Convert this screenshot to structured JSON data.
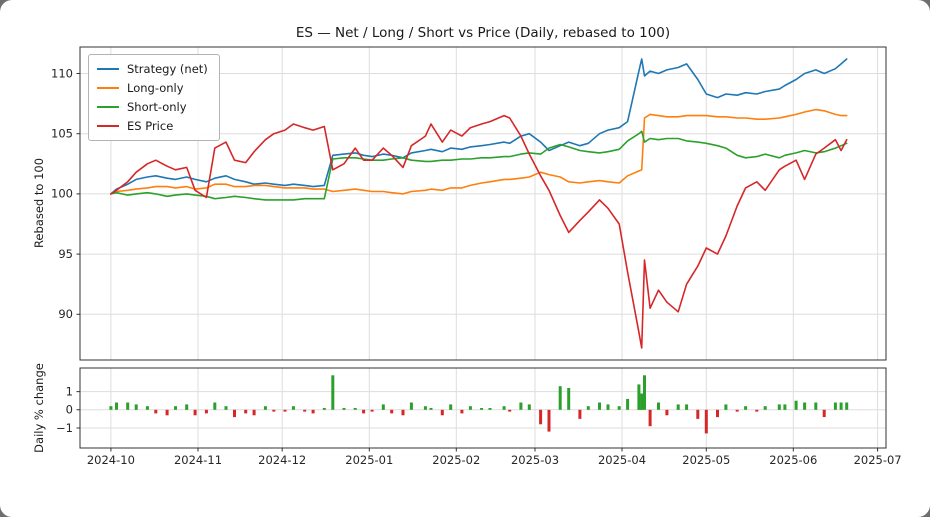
{
  "chart_data": {
    "type": "line+bar",
    "title": "ES — Net / Long / Short vs Price (Daily, rebased to 100)",
    "x_axis": {
      "range": [
        "2024-09-20",
        "2025-07-04"
      ],
      "tick_dates": [
        "2024-10-01",
        "2024-11-01",
        "2024-12-01",
        "2025-01-01",
        "2025-02-01",
        "2025-03-01",
        "2025-04-01",
        "2025-05-01",
        "2025-06-01",
        "2025-07-01"
      ],
      "tick_labels": [
        "2024-10",
        "2024-11",
        "2024-12",
        "2025-01",
        "2025-02",
        "2025-03",
        "2025-04",
        "2025-05",
        "2025-06",
        "2025-07"
      ]
    },
    "panels": {
      "top": {
        "ylabel": "Rebased to 100",
        "ylim": [
          86.2,
          112.2
        ],
        "yticks": [
          90,
          95,
          100,
          105,
          110
        ],
        "grid": true,
        "legend_position": "upper left",
        "dates": [
          "2024-10-01",
          "2024-10-03",
          "2024-10-07",
          "2024-10-10",
          "2024-10-14",
          "2024-10-17",
          "2024-10-21",
          "2024-10-24",
          "2024-10-28",
          "2024-10-31",
          "2024-11-04",
          "2024-11-07",
          "2024-11-11",
          "2024-11-14",
          "2024-11-18",
          "2024-11-21",
          "2024-11-25",
          "2024-11-28",
          "2024-12-02",
          "2024-12-05",
          "2024-12-09",
          "2024-12-12",
          "2024-12-16",
          "2024-12-19",
          "2024-12-23",
          "2024-12-27",
          "2024-12-30",
          "2025-01-02",
          "2025-01-06",
          "2025-01-09",
          "2025-01-13",
          "2025-01-16",
          "2025-01-21",
          "2025-01-23",
          "2025-01-27",
          "2025-01-30",
          "2025-02-03",
          "2025-02-06",
          "2025-02-10",
          "2025-02-13",
          "2025-02-18",
          "2025-02-20",
          "2025-02-24",
          "2025-02-27",
          "2025-03-03",
          "2025-03-06",
          "2025-03-10",
          "2025-03-13",
          "2025-03-17",
          "2025-03-20",
          "2025-03-24",
          "2025-03-27",
          "2025-03-31",
          "2025-04-03",
          "2025-04-07",
          "2025-04-08",
          "2025-04-09",
          "2025-04-11",
          "2025-04-14",
          "2025-04-17",
          "2025-04-21",
          "2025-04-24",
          "2025-04-28",
          "2025-05-01",
          "2025-05-05",
          "2025-05-08",
          "2025-05-12",
          "2025-05-15",
          "2025-05-19",
          "2025-05-22",
          "2025-05-27",
          "2025-05-29",
          "2025-06-02",
          "2025-06-05",
          "2025-06-09",
          "2025-06-12",
          "2025-06-16",
          "2025-06-18",
          "2025-06-20"
        ],
        "series": [
          {
            "name": "Strategy (net)",
            "color": "#1f77b4",
            "values": [
              100.0,
              100.4,
              100.8,
              101.2,
              101.4,
              101.5,
              101.3,
              101.2,
              101.4,
              101.2,
              101.0,
              101.3,
              101.5,
              101.2,
              101.0,
              100.8,
              100.9,
              100.8,
              100.7,
              100.8,
              100.7,
              100.6,
              100.7,
              103.2,
              103.3,
              103.4,
              103.2,
              103.1,
              103.3,
              103.2,
              103.0,
              103.4,
              103.6,
              103.7,
              103.5,
              103.8,
              103.7,
              103.9,
              104.0,
              104.1,
              104.3,
              104.2,
              104.8,
              105.0,
              104.3,
              103.6,
              104.0,
              104.3,
              104.0,
              104.2,
              105.0,
              105.3,
              105.5,
              106.0,
              110.2,
              111.2,
              109.8,
              110.2,
              110.0,
              110.3,
              110.5,
              110.8,
              109.5,
              108.3,
              108.0,
              108.3,
              108.2,
              108.4,
              108.3,
              108.5,
              108.7,
              109.0,
              109.5,
              110.0,
              110.3,
              110.0,
              110.4,
              110.8,
              111.2
            ]
          },
          {
            "name": "Long-only",
            "color": "#ff7f0e",
            "values": [
              100.0,
              100.2,
              100.3,
              100.4,
              100.5,
              100.6,
              100.6,
              100.5,
              100.6,
              100.4,
              100.5,
              100.8,
              100.8,
              100.6,
              100.6,
              100.7,
              100.7,
              100.6,
              100.5,
              100.5,
              100.5,
              100.4,
              100.4,
              100.2,
              100.3,
              100.4,
              100.3,
              100.2,
              100.2,
              100.1,
              100.0,
              100.2,
              100.3,
              100.4,
              100.3,
              100.5,
              100.5,
              100.7,
              100.9,
              101.0,
              101.2,
              101.2,
              101.3,
              101.4,
              101.8,
              101.6,
              101.4,
              101.0,
              100.9,
              101.0,
              101.1,
              101.0,
              100.9,
              101.5,
              101.9,
              102.0,
              106.3,
              106.6,
              106.5,
              106.4,
              106.4,
              106.5,
              106.5,
              106.5,
              106.4,
              106.4,
              106.3,
              106.3,
              106.2,
              106.2,
              106.3,
              106.4,
              106.6,
              106.8,
              107.0,
              106.9,
              106.6,
              106.5,
              106.5
            ]
          },
          {
            "name": "Short-only",
            "color": "#2ca02c",
            "values": [
              100.0,
              100.1,
              99.9,
              100.0,
              100.1,
              100.0,
              99.8,
              99.9,
              100.0,
              99.9,
              99.8,
              99.6,
              99.7,
              99.8,
              99.7,
              99.6,
              99.5,
              99.5,
              99.5,
              99.5,
              99.6,
              99.6,
              99.6,
              102.9,
              103.0,
              103.0,
              102.9,
              102.8,
              102.8,
              102.9,
              103.0,
              102.8,
              102.7,
              102.7,
              102.8,
              102.8,
              102.9,
              102.9,
              103.0,
              103.0,
              103.1,
              103.1,
              103.3,
              103.4,
              103.3,
              103.8,
              104.1,
              103.9,
              103.6,
              103.5,
              103.4,
              103.5,
              103.7,
              104.4,
              105.0,
              105.2,
              104.3,
              104.6,
              104.5,
              104.6,
              104.6,
              104.4,
              104.3,
              104.2,
              104.0,
              103.8,
              103.2,
              103.0,
              103.1,
              103.3,
              103.0,
              103.2,
              103.4,
              103.6,
              103.4,
              103.5,
              103.8,
              104.0,
              104.2
            ]
          },
          {
            "name": "ES Price",
            "color": "#d62728",
            "values": [
              100.0,
              100.3,
              101.0,
              101.8,
              102.5,
              102.8,
              102.3,
              102.0,
              102.2,
              100.3,
              99.7,
              103.8,
              104.3,
              102.8,
              102.6,
              103.5,
              104.5,
              105.0,
              105.3,
              105.8,
              105.5,
              105.3,
              105.6,
              102.0,
              102.5,
              103.8,
              102.8,
              102.8,
              103.8,
              103.2,
              102.2,
              104.0,
              104.8,
              105.8,
              104.3,
              105.3,
              104.8,
              105.5,
              105.8,
              106.0,
              106.5,
              106.3,
              104.8,
              103.3,
              101.5,
              100.3,
              98.2,
              96.8,
              97.8,
              98.5,
              99.5,
              98.8,
              97.5,
              93.5,
              88.5,
              87.2,
              94.5,
              90.5,
              92.0,
              91.0,
              90.2,
              92.5,
              94.0,
              95.5,
              95.0,
              96.5,
              99.0,
              100.5,
              101.0,
              100.3,
              102.0,
              102.3,
              102.8,
              101.2,
              103.3,
              103.8,
              104.5,
              103.6,
              104.5
            ]
          }
        ]
      },
      "bottom": {
        "type": "bar",
        "ylabel": "Daily % change",
        "ylim": [
          -2.1,
          2.3
        ],
        "yticks": [
          -1,
          0,
          1
        ],
        "positive_color": "#2ca02c",
        "negative_color": "#d62728",
        "values": [
          0.2,
          0.4,
          0.4,
          0.3,
          0.2,
          -0.2,
          -0.3,
          0.2,
          0.3,
          -0.3,
          -0.2,
          0.4,
          0.2,
          -0.4,
          -0.2,
          -0.3,
          0.2,
          -0.1,
          -0.1,
          0.2,
          -0.1,
          -0.2,
          0.1,
          1.9,
          0.1,
          0.1,
          -0.2,
          -0.1,
          0.3,
          -0.2,
          -0.3,
          0.4,
          0.2,
          0.1,
          -0.3,
          0.3,
          -0.2,
          0.2,
          0.1,
          0.1,
          0.2,
          -0.1,
          0.4,
          0.3,
          -0.8,
          -1.2,
          1.3,
          1.2,
          -0.5,
          0.2,
          0.4,
          0.3,
          0.2,
          0.6,
          1.4,
          0.9,
          1.9,
          -0.9,
          0.4,
          -0.3,
          0.3,
          0.3,
          -0.5,
          -1.3,
          -0.4,
          0.3,
          -0.1,
          0.2,
          -0.1,
          0.2,
          0.3,
          0.3,
          0.5,
          0.4,
          0.4,
          -0.4,
          0.4,
          0.4,
          0.4
        ]
      }
    }
  }
}
